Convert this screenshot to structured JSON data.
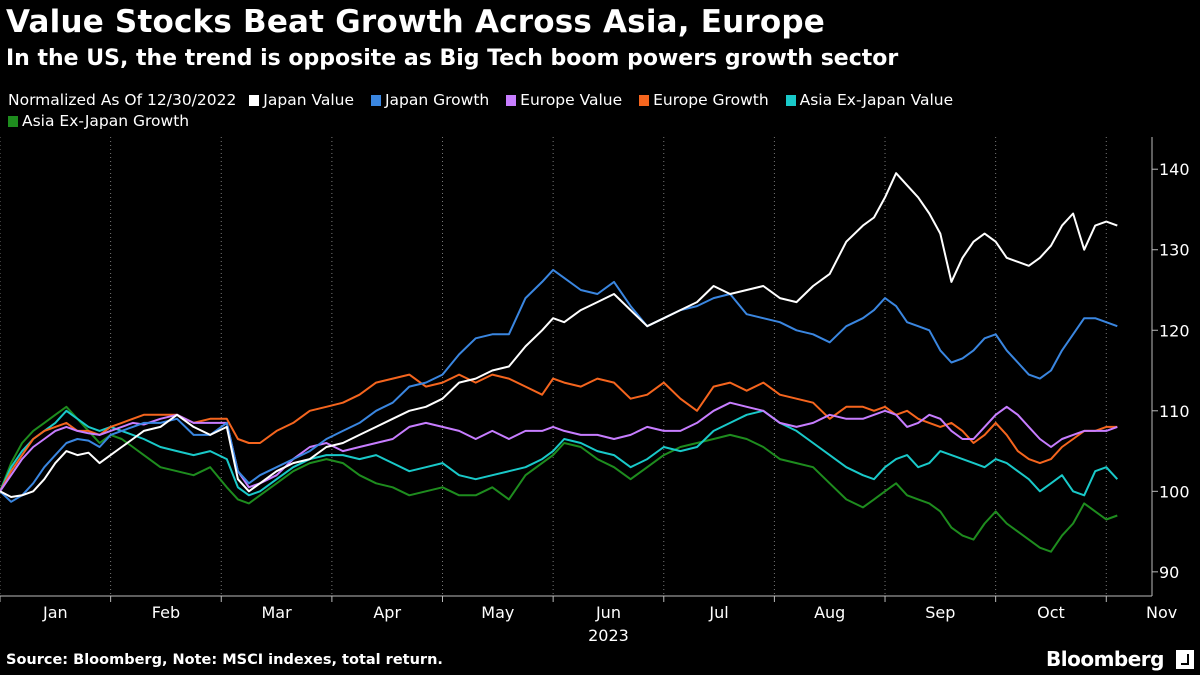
{
  "chart_data": {
    "type": "line",
    "title": "Value Stocks Beat Growth Across Asia, Europe",
    "subtitle": "In the US, the trend is opposite as Big Tech boom powers growth sector",
    "legend_note": "Normalized As Of 12/30/2022",
    "x_ticks": [
      "Jan",
      "Feb",
      "Mar",
      "Apr",
      "May",
      "Jun",
      "Jul",
      "Aug",
      "Sep",
      "Oct",
      "Nov"
    ],
    "x_year_label": "2023",
    "xlim": [
      0,
      10.35
    ],
    "y_ticks": [
      90,
      100,
      110,
      120,
      130,
      140
    ],
    "ylim": [
      87,
      144
    ],
    "grid": "vertical-dotted",
    "legend_position": "top-left",
    "series": [
      {
        "name": "Japan Value",
        "color": "#ffffff",
        "x": [
          0,
          0.1,
          0.2,
          0.3,
          0.4,
          0.5,
          0.6,
          0.7,
          0.8,
          0.9,
          1.0,
          1.1,
          1.2,
          1.3,
          1.45,
          1.6,
          1.75,
          1.9,
          2.05,
          2.15,
          2.25,
          2.35,
          2.5,
          2.65,
          2.8,
          2.95,
          3.1,
          3.25,
          3.4,
          3.55,
          3.7,
          3.85,
          4.0,
          4.15,
          4.3,
          4.45,
          4.6,
          4.75,
          4.9,
          5.0,
          5.1,
          5.25,
          5.4,
          5.55,
          5.7,
          5.85,
          6.0,
          6.15,
          6.3,
          6.45,
          6.6,
          6.75,
          6.9,
          7.05,
          7.2,
          7.35,
          7.5,
          7.65,
          7.8,
          7.9,
          8.0,
          8.1,
          8.2,
          8.3,
          8.4,
          8.5,
          8.6,
          8.7,
          8.8,
          8.9,
          9.0,
          9.1,
          9.2,
          9.3,
          9.4,
          9.5,
          9.6,
          9.7,
          9.8,
          9.9,
          10.0,
          10.1
        ],
        "values": [
          100,
          99.3,
          99.5,
          100,
          101.5,
          103.5,
          105,
          104.5,
          104.8,
          103.5,
          104.5,
          105.5,
          106.5,
          107.5,
          108,
          109.5,
          108,
          107,
          108,
          101.5,
          100,
          101,
          102.5,
          103.5,
          104,
          105.5,
          106,
          107,
          108,
          109,
          110,
          110.5,
          111.5,
          113.5,
          114,
          115,
          115.5,
          118,
          120,
          121.5,
          121,
          122.5,
          123.5,
          124.5,
          122.5,
          120.5,
          121.5,
          122.5,
          123.5,
          125.5,
          124.5,
          125,
          125.5,
          124,
          123.5,
          125.5,
          127,
          131,
          133,
          134,
          136.5,
          139.5,
          138,
          136.5,
          134.5,
          132,
          126,
          129,
          131,
          132,
          131,
          129,
          128.5,
          128,
          129,
          130.5,
          133,
          134.5,
          130,
          133,
          133.5,
          133
        ]
      },
      {
        "name": "Japan Growth",
        "color": "#3a86e0",
        "x": [
          0,
          0.1,
          0.2,
          0.3,
          0.4,
          0.5,
          0.6,
          0.7,
          0.8,
          0.9,
          1.0,
          1.1,
          1.2,
          1.3,
          1.45,
          1.6,
          1.75,
          1.9,
          2.05,
          2.15,
          2.25,
          2.35,
          2.5,
          2.65,
          2.8,
          2.95,
          3.1,
          3.25,
          3.4,
          3.55,
          3.7,
          3.85,
          4.0,
          4.15,
          4.3,
          4.45,
          4.6,
          4.75,
          4.9,
          5.0,
          5.1,
          5.25,
          5.4,
          5.55,
          5.7,
          5.85,
          6.0,
          6.15,
          6.3,
          6.45,
          6.6,
          6.75,
          6.9,
          7.05,
          7.2,
          7.35,
          7.5,
          7.65,
          7.8,
          7.9,
          8.0,
          8.1,
          8.2,
          8.3,
          8.4,
          8.5,
          8.6,
          8.7,
          8.8,
          8.9,
          9.0,
          9.1,
          9.2,
          9.3,
          9.4,
          9.5,
          9.6,
          9.7,
          9.8,
          9.9,
          10.0,
          10.1
        ],
        "values": [
          100,
          98.7,
          99.5,
          101,
          103,
          104.5,
          106,
          106.5,
          106.3,
          105.5,
          107,
          107.5,
          108,
          108.5,
          108.5,
          109,
          107,
          107,
          108.5,
          102.5,
          101,
          102,
          103,
          104,
          105,
          106.5,
          107.5,
          108.5,
          110,
          111,
          113,
          113.5,
          114.5,
          117,
          119,
          119.5,
          119.5,
          124,
          126,
          127.5,
          126.5,
          125,
          124.5,
          126,
          123,
          120.5,
          121.5,
          122.5,
          123,
          124,
          124.5,
          122,
          121.5,
          121,
          120,
          119.5,
          118.5,
          120.5,
          121.5,
          122.5,
          124,
          123,
          121,
          120.5,
          120,
          117.5,
          116,
          116.5,
          117.5,
          119,
          119.5,
          117.5,
          116,
          114.5,
          114,
          115,
          117.5,
          119.5,
          121.5,
          121.5,
          121,
          120.5
        ]
      },
      {
        "name": "Europe Value",
        "color": "#c77dff",
        "x": [
          0,
          0.1,
          0.2,
          0.3,
          0.4,
          0.5,
          0.6,
          0.7,
          0.8,
          0.9,
          1.0,
          1.1,
          1.2,
          1.3,
          1.45,
          1.6,
          1.75,
          1.9,
          2.05,
          2.15,
          2.25,
          2.35,
          2.5,
          2.65,
          2.8,
          2.95,
          3.1,
          3.25,
          3.4,
          3.55,
          3.7,
          3.85,
          4.0,
          4.15,
          4.3,
          4.45,
          4.6,
          4.75,
          4.9,
          5.0,
          5.1,
          5.25,
          5.4,
          5.55,
          5.7,
          5.85,
          6.0,
          6.15,
          6.3,
          6.45,
          6.6,
          6.75,
          6.9,
          7.05,
          7.2,
          7.35,
          7.5,
          7.65,
          7.8,
          7.9,
          8.0,
          8.1,
          8.2,
          8.3,
          8.4,
          8.5,
          8.6,
          8.7,
          8.8,
          8.9,
          9.0,
          9.1,
          9.2,
          9.3,
          9.4,
          9.5,
          9.6,
          9.7,
          9.8,
          9.9,
          10.0,
          10.1
        ],
        "values": [
          100,
          102,
          104,
          105.5,
          106.5,
          107.5,
          108,
          107.5,
          107.2,
          107,
          107.5,
          108,
          108.5,
          108.3,
          109,
          109.5,
          108.5,
          108.5,
          108.5,
          102.5,
          100.5,
          101,
          102,
          104,
          105.5,
          106,
          105,
          105.5,
          106,
          106.5,
          108,
          108.5,
          108,
          107.5,
          106.5,
          107.5,
          106.5,
          107.5,
          107.5,
          108,
          107.5,
          107,
          107,
          106.5,
          107,
          108,
          107.5,
          107.5,
          108.5,
          110,
          111,
          110.5,
          110,
          108.5,
          108,
          108.5,
          109.5,
          109,
          109,
          109.5,
          110,
          109.5,
          108,
          108.5,
          109.5,
          109,
          107.5,
          106.5,
          106.5,
          108,
          109.5,
          110.5,
          109.5,
          108,
          106.5,
          105.5,
          106.5,
          107,
          107.5,
          107.5,
          107.5,
          108
        ]
      },
      {
        "name": "Europe Growth",
        "color": "#f5651e",
        "x": [
          0,
          0.1,
          0.2,
          0.3,
          0.4,
          0.5,
          0.6,
          0.7,
          0.8,
          0.9,
          1.0,
          1.1,
          1.2,
          1.3,
          1.45,
          1.6,
          1.75,
          1.9,
          2.05,
          2.15,
          2.25,
          2.35,
          2.5,
          2.65,
          2.8,
          2.95,
          3.1,
          3.25,
          3.4,
          3.55,
          3.7,
          3.85,
          4.0,
          4.15,
          4.3,
          4.45,
          4.6,
          4.75,
          4.9,
          5.0,
          5.1,
          5.25,
          5.4,
          5.55,
          5.7,
          5.85,
          6.0,
          6.15,
          6.3,
          6.45,
          6.6,
          6.75,
          6.9,
          7.05,
          7.2,
          7.35,
          7.5,
          7.65,
          7.8,
          7.9,
          8.0,
          8.1,
          8.2,
          8.3,
          8.4,
          8.5,
          8.6,
          8.7,
          8.8,
          8.9,
          9.0,
          9.1,
          9.2,
          9.3,
          9.4,
          9.5,
          9.6,
          9.7,
          9.8,
          9.9,
          10.0,
          10.1
        ],
        "values": [
          100,
          102.5,
          104.5,
          106.5,
          107.5,
          108,
          108.5,
          107.5,
          107.5,
          107,
          108,
          108.5,
          109,
          109.5,
          109.5,
          109.5,
          108.5,
          109,
          109,
          106.5,
          106,
          106,
          107.5,
          108.5,
          110,
          110.5,
          111,
          112,
          113.5,
          114,
          114.5,
          113,
          113.5,
          114.5,
          113.5,
          114.5,
          114,
          113,
          112,
          114,
          113.5,
          113,
          114,
          113.5,
          111.5,
          112,
          113.5,
          111.5,
          110,
          113,
          113.5,
          112.5,
          113.5,
          112,
          111.5,
          111,
          109,
          110.5,
          110.5,
          110,
          110.5,
          109.5,
          110,
          109,
          108.5,
          108,
          108.5,
          107.5,
          106,
          107,
          108.5,
          107,
          105,
          104,
          103.5,
          104,
          105.5,
          106.5,
          107.5,
          107.5,
          108,
          108
        ]
      },
      {
        "name": "Asia Ex-Japan Value",
        "color": "#19c9c9",
        "x": [
          0,
          0.1,
          0.2,
          0.3,
          0.4,
          0.5,
          0.6,
          0.7,
          0.8,
          0.9,
          1.0,
          1.1,
          1.2,
          1.3,
          1.45,
          1.6,
          1.75,
          1.9,
          2.05,
          2.15,
          2.25,
          2.35,
          2.5,
          2.65,
          2.8,
          2.95,
          3.1,
          3.25,
          3.4,
          3.55,
          3.7,
          3.85,
          4.0,
          4.15,
          4.3,
          4.45,
          4.6,
          4.75,
          4.9,
          5.0,
          5.1,
          5.25,
          5.4,
          5.55,
          5.7,
          5.85,
          6.0,
          6.15,
          6.3,
          6.45,
          6.6,
          6.75,
          6.9,
          7.05,
          7.2,
          7.35,
          7.5,
          7.65,
          7.8,
          7.9,
          8.0,
          8.1,
          8.2,
          8.3,
          8.4,
          8.5,
          8.6,
          8.7,
          8.8,
          8.9,
          9.0,
          9.1,
          9.2,
          9.3,
          9.4,
          9.5,
          9.6,
          9.7,
          9.8,
          9.9,
          10.0,
          10.1
        ],
        "values": [
          100,
          103,
          105,
          106.5,
          107.5,
          108.5,
          110,
          109,
          108,
          107.5,
          108,
          107.5,
          107,
          106.5,
          105.5,
          105,
          104.5,
          105,
          104,
          100.5,
          99.5,
          100,
          101.5,
          103,
          104,
          104.5,
          104.5,
          104,
          104.5,
          103.5,
          102.5,
          103,
          103.5,
          102,
          101.5,
          102,
          102.5,
          103,
          104,
          105,
          106.5,
          106,
          105,
          104.5,
          103,
          104,
          105.5,
          105,
          105.5,
          107.5,
          108.5,
          109.5,
          110,
          108.5,
          107.5,
          106,
          104.5,
          103,
          102,
          101.5,
          103,
          104,
          104.5,
          103,
          103.5,
          105,
          104.5,
          104,
          103.5,
          103,
          104,
          103.5,
          102.5,
          101.5,
          100,
          101,
          102,
          100,
          99.5,
          102.5,
          103,
          101.5
        ]
      },
      {
        "name": "Asia Ex-Japan Growth",
        "color": "#1e8c1e",
        "x": [
          0,
          0.1,
          0.2,
          0.3,
          0.4,
          0.5,
          0.6,
          0.7,
          0.8,
          0.9,
          1.0,
          1.1,
          1.2,
          1.3,
          1.45,
          1.6,
          1.75,
          1.9,
          2.05,
          2.15,
          2.25,
          2.35,
          2.5,
          2.65,
          2.8,
          2.95,
          3.1,
          3.25,
          3.4,
          3.55,
          3.7,
          3.85,
          4.0,
          4.15,
          4.3,
          4.45,
          4.6,
          4.75,
          4.9,
          5.0,
          5.1,
          5.25,
          5.4,
          5.55,
          5.7,
          5.85,
          6.0,
          6.15,
          6.3,
          6.45,
          6.6,
          6.75,
          6.9,
          7.05,
          7.2,
          7.35,
          7.5,
          7.65,
          7.8,
          7.9,
          8.0,
          8.1,
          8.2,
          8.3,
          8.4,
          8.5,
          8.6,
          8.7,
          8.8,
          8.9,
          9.0,
          9.1,
          9.2,
          9.3,
          9.4,
          9.5,
          9.6,
          9.7,
          9.8,
          9.9,
          10.0,
          10.1
        ],
        "values": [
          100,
          103.5,
          106,
          107.5,
          108.5,
          109.5,
          110.5,
          109,
          107.5,
          106,
          107,
          106.5,
          105.5,
          104.5,
          103,
          102.5,
          102,
          103,
          100.5,
          99,
          98.5,
          99.5,
          101,
          102.5,
          103.5,
          104,
          103.5,
          102,
          101,
          100.5,
          99.5,
          100,
          100.5,
          99.5,
          99.5,
          100.5,
          99,
          102,
          103.5,
          104.5,
          106,
          105.5,
          104,
          103,
          101.5,
          103,
          104.5,
          105.5,
          106,
          106.5,
          107,
          106.5,
          105.5,
          104,
          103.5,
          103,
          101,
          99,
          98,
          99,
          100,
          101,
          99.5,
          99,
          98.5,
          97.5,
          95.5,
          94.5,
          94,
          96,
          97.5,
          96,
          95,
          94,
          93,
          92.5,
          94.5,
          96,
          98.5,
          97.5,
          96.5,
          97
        ]
      }
    ]
  },
  "source_note": "Source: Bloomberg, Note: MSCI indexes, total return.",
  "brand": "Bloomberg"
}
